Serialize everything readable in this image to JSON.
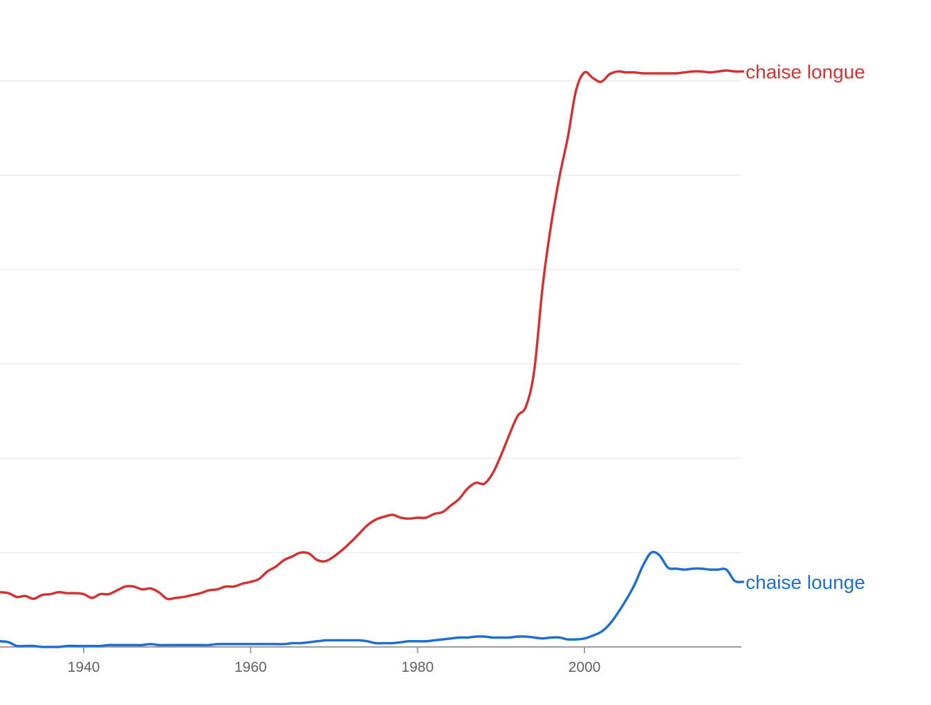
{
  "chart_data": {
    "type": "line",
    "title": "",
    "xlabel": "",
    "ylabel": "",
    "x_ticks": [
      "1940",
      "1960",
      "1980",
      "2000"
    ],
    "xlim": [
      1930,
      2019
    ],
    "ylim": [
      0,
      6
    ],
    "grid": true,
    "legend": "inline labels at line ends (right)",
    "series": [
      {
        "name": "chaise longue",
        "color": "#d23232",
        "x": [
          1930,
          1931,
          1932,
          1933,
          1934,
          1935,
          1936,
          1937,
          1938,
          1939,
          1940,
          1941,
          1942,
          1943,
          1944,
          1945,
          1946,
          1947,
          1948,
          1949,
          1950,
          1951,
          1952,
          1953,
          1954,
          1955,
          1956,
          1957,
          1958,
          1959,
          1960,
          1961,
          1962,
          1963,
          1964,
          1965,
          1966,
          1967,
          1968,
          1969,
          1970,
          1971,
          1972,
          1973,
          1974,
          1975,
          1976,
          1977,
          1978,
          1979,
          1980,
          1981,
          1982,
          1983,
          1984,
          1985,
          1986,
          1987,
          1988,
          1989,
          1990,
          1991,
          1992,
          1993,
          1994,
          1995,
          1996,
          1997,
          1998,
          1999,
          2000,
          2001,
          2002,
          2003,
          2004,
          2005,
          2006,
          2007,
          2008,
          2009,
          2010,
          2011,
          2012,
          2013,
          2014,
          2015,
          2016,
          2017,
          2018,
          2019
        ],
        "values": [
          0.58,
          0.57,
          0.53,
          0.54,
          0.51,
          0.55,
          0.56,
          0.58,
          0.57,
          0.57,
          0.56,
          0.52,
          0.56,
          0.56,
          0.6,
          0.64,
          0.64,
          0.61,
          0.62,
          0.58,
          0.51,
          0.52,
          0.53,
          0.55,
          0.57,
          0.6,
          0.61,
          0.64,
          0.64,
          0.67,
          0.69,
          0.72,
          0.8,
          0.85,
          0.92,
          0.96,
          1.0,
          0.99,
          0.92,
          0.91,
          0.96,
          1.03,
          1.11,
          1.2,
          1.29,
          1.35,
          1.38,
          1.4,
          1.37,
          1.36,
          1.37,
          1.37,
          1.41,
          1.43,
          1.5,
          1.57,
          1.68,
          1.74,
          1.73,
          1.84,
          2.03,
          2.25,
          2.45,
          2.55,
          2.94,
          3.83,
          4.47,
          4.98,
          5.4,
          5.9,
          6.09,
          6.03,
          5.99,
          6.07,
          6.1,
          6.09,
          6.09,
          6.08,
          6.08,
          6.08,
          6.08,
          6.08,
          6.09,
          6.1,
          6.1,
          6.09,
          6.1,
          6.11,
          6.1,
          6.1
        ]
      },
      {
        "name": "chaise lounge",
        "color": "#1f6fd1",
        "x": [
          1930,
          1931,
          1932,
          1933,
          1934,
          1935,
          1936,
          1937,
          1938,
          1939,
          1940,
          1941,
          1942,
          1943,
          1944,
          1945,
          1946,
          1947,
          1948,
          1949,
          1950,
          1951,
          1952,
          1953,
          1954,
          1955,
          1956,
          1957,
          1958,
          1959,
          1960,
          1961,
          1962,
          1963,
          1964,
          1965,
          1966,
          1967,
          1968,
          1969,
          1970,
          1971,
          1972,
          1973,
          1974,
          1975,
          1976,
          1977,
          1978,
          1979,
          1980,
          1981,
          1982,
          1983,
          1984,
          1985,
          1986,
          1987,
          1988,
          1989,
          1990,
          1991,
          1992,
          1993,
          1994,
          1995,
          1996,
          1997,
          1998,
          1999,
          2000,
          2001,
          2002,
          2003,
          2004,
          2005,
          2006,
          2007,
          2008,
          2009,
          2010,
          2011,
          2012,
          2013,
          2014,
          2015,
          2016,
          2017,
          2018,
          2019
        ],
        "values": [
          0.06,
          0.05,
          0.01,
          0.01,
          0.01,
          0.0,
          0.0,
          0.0,
          0.01,
          0.01,
          0.01,
          0.01,
          0.01,
          0.02,
          0.02,
          0.02,
          0.02,
          0.02,
          0.03,
          0.02,
          0.02,
          0.02,
          0.02,
          0.02,
          0.02,
          0.02,
          0.03,
          0.03,
          0.03,
          0.03,
          0.03,
          0.03,
          0.03,
          0.03,
          0.03,
          0.04,
          0.04,
          0.05,
          0.06,
          0.07,
          0.07,
          0.07,
          0.07,
          0.07,
          0.06,
          0.04,
          0.04,
          0.04,
          0.05,
          0.06,
          0.06,
          0.06,
          0.07,
          0.08,
          0.09,
          0.1,
          0.1,
          0.11,
          0.11,
          0.1,
          0.1,
          0.1,
          0.11,
          0.11,
          0.1,
          0.09,
          0.1,
          0.1,
          0.08,
          0.08,
          0.09,
          0.12,
          0.16,
          0.24,
          0.36,
          0.5,
          0.66,
          0.86,
          1.0,
          0.97,
          0.84,
          0.83,
          0.82,
          0.83,
          0.83,
          0.82,
          0.82,
          0.82,
          0.7,
          0.69
        ]
      }
    ]
  }
}
